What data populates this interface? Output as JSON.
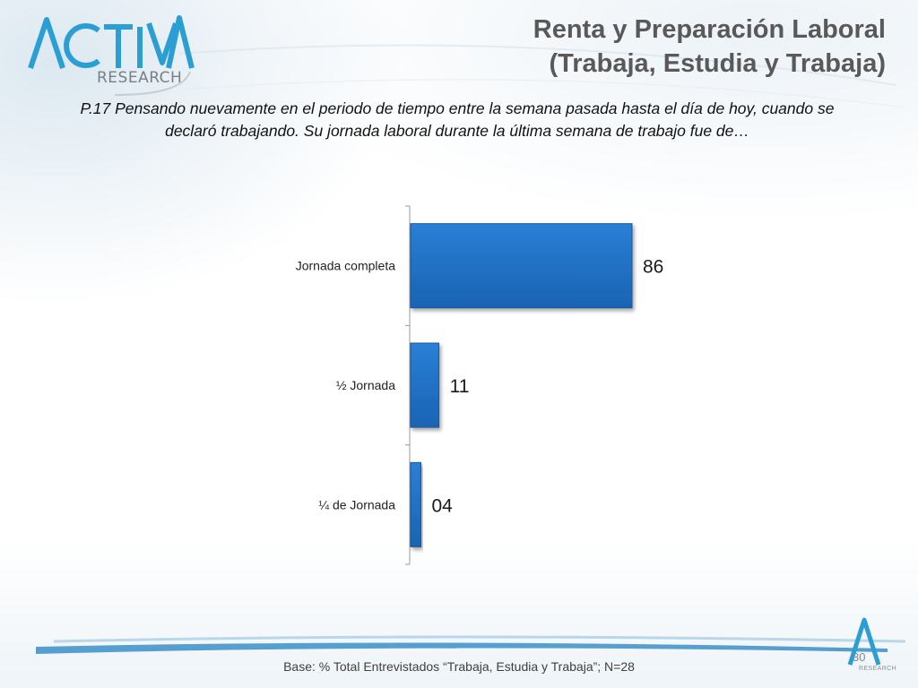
{
  "header": {
    "logo_text": "ACTIVA",
    "logo_sub": "RESEARCH",
    "title_line1": "Renta y Preparación Laboral",
    "title_line2": "(Trabaja, Estudia y Trabaja)"
  },
  "question": {
    "line1": "P.17 Pensando nuevamente en el periodo de tiempo entre la semana pasada hasta el día de hoy, cuando se",
    "line2": "declaró trabajando. Su jornada laboral durante la última semana de trabajo fue de…"
  },
  "chart_data": {
    "type": "bar",
    "orientation": "horizontal",
    "categories": [
      "Jornada completa",
      "½ Jornada",
      "¼ de Jornada"
    ],
    "values": [
      86,
      11,
      4
    ],
    "value_labels": [
      "86",
      "11",
      "04"
    ],
    "xlim": [
      0,
      100
    ],
    "grid": false,
    "legend": "none",
    "bar_color": "#1f6fc4",
    "bar_edge_color": "#17589d"
  },
  "footer": {
    "base_text": "Base: % Total Entrevistados “Trabaja, Estudia y Trabaja”; N=28",
    "page_number": "30",
    "mini_logo_sub": "RESEARCH"
  }
}
